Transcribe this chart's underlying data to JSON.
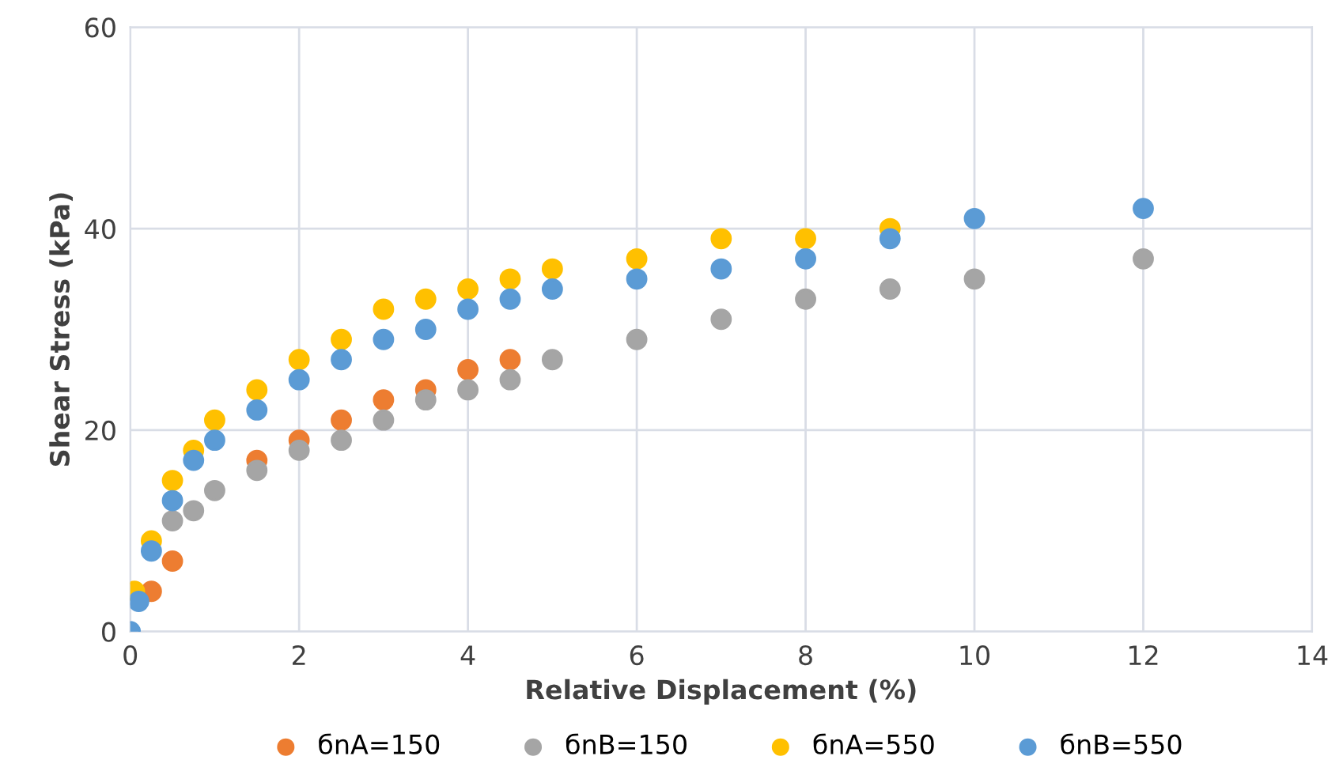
{
  "chart_data": {
    "type": "scatter",
    "xlabel": "Relative Displacement (%)",
    "ylabel": "Shear Stress (kPa)",
    "xlim": [
      0,
      14
    ],
    "ylim": [
      0,
      60
    ],
    "xticks": [
      0,
      2,
      4,
      6,
      8,
      10,
      12,
      14
    ],
    "yticks": [
      0,
      20,
      40,
      60
    ],
    "grid": true,
    "legend": "bottom",
    "marker": "circle",
    "series": [
      {
        "name": "бnA=150",
        "color": "#ed7d31",
        "x": [
          0.25,
          0.5,
          1.5,
          2,
          2.5,
          3,
          3.5,
          4,
          4.5
        ],
        "values": [
          4,
          7,
          17,
          19,
          21,
          23,
          24,
          26,
          27
        ]
      },
      {
        "name": "бnB=150",
        "color": "#a5a5a5",
        "x": [
          0.5,
          0.75,
          1,
          1.5,
          2,
          2.5,
          3,
          3.5,
          4,
          4.5,
          5,
          6,
          7,
          8,
          9,
          10,
          12
        ],
        "values": [
          11,
          12,
          14,
          16,
          18,
          19,
          21,
          23,
          24,
          25,
          27,
          29,
          31,
          33,
          34,
          35,
          37
        ]
      },
      {
        "name": "бnA=550",
        "color": "#ffc000",
        "x": [
          0.05,
          0.25,
          0.5,
          0.75,
          1,
          1.5,
          2,
          2.5,
          3,
          3.5,
          4,
          4.5,
          5,
          6,
          7,
          8,
          9
        ],
        "values": [
          4,
          9,
          15,
          18,
          21,
          24,
          27,
          29,
          32,
          33,
          34,
          35,
          36,
          37,
          39,
          39,
          40
        ]
      },
      {
        "name": "бnB=550",
        "color": "#5b9bd5",
        "x": [
          0,
          0.1,
          0.25,
          0.5,
          0.75,
          1,
          1.5,
          2,
          2.5,
          3,
          3.5,
          4,
          4.5,
          5,
          6,
          7,
          8,
          9,
          10,
          12
        ],
        "values": [
          0,
          3,
          8,
          13,
          17,
          19,
          22,
          25,
          27,
          29,
          30,
          32,
          33,
          34,
          35,
          36,
          37,
          39,
          41,
          42
        ]
      }
    ]
  }
}
